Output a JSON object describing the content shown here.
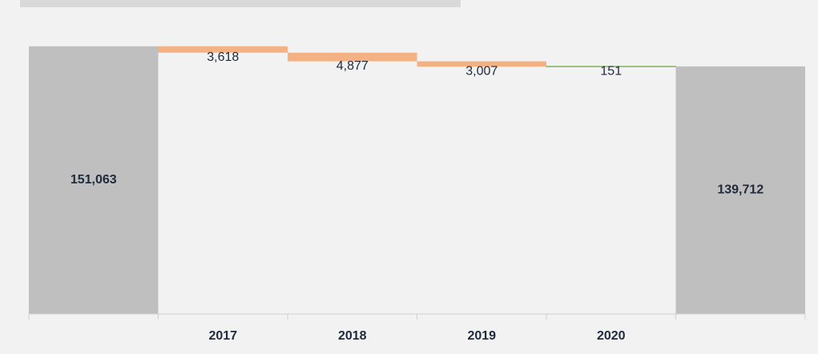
{
  "chart_data": {
    "type": "waterfall",
    "categories": [
      null,
      "2017",
      "2018",
      "2019",
      "2020",
      null
    ],
    "values": [
      151063,
      -3618,
      -4877,
      -3007,
      151,
      139712
    ],
    "value_labels": [
      "151,063",
      "3,618",
      "4,877",
      "3,007",
      "151",
      "139,712"
    ],
    "color_total": "#bfbfbf",
    "color_decrease": "#f4b183",
    "color_increase": "#70ad47",
    "ylim": [
      0,
      160000
    ]
  }
}
